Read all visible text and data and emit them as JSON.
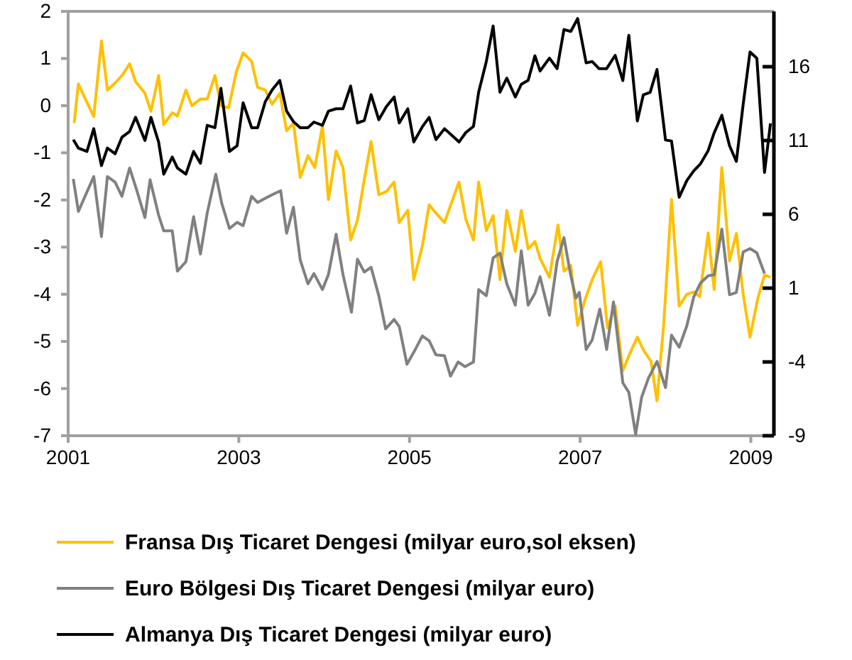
{
  "chart_data": {
    "type": "line",
    "xlim": [
      2001,
      2009.27
    ],
    "xticks": [
      2001,
      2003,
      2005,
      2007,
      2009
    ],
    "ylim": [
      -7,
      2
    ],
    "yticks": [
      -7,
      -6,
      -5,
      -4,
      -3,
      -2,
      -1,
      0,
      1,
      2
    ],
    "y2lim": [
      -9,
      19.75
    ],
    "y2ticks": [
      -9,
      -4,
      1,
      6,
      11,
      16
    ],
    "legend": "bottom",
    "grid": false,
    "series": [
      {
        "name": "Fransa Dış Ticaret Dengesi (milyar euro,sol eksen)",
        "color": "#ffc000",
        "x": [
          2001.07,
          2001.12,
          2001.21,
          2001.3,
          2001.39,
          2001.46,
          2001.55,
          2001.64,
          2001.72,
          2001.79,
          2001.9,
          2001.97,
          2002.06,
          2002.12,
          2002.22,
          2002.28,
          2002.38,
          2002.45,
          2002.55,
          2002.63,
          2002.72,
          2002.79,
          2002.88,
          2002.97,
          2003.05,
          2003.15,
          2003.22,
          2003.31,
          2003.39,
          2003.48,
          2003.56,
          2003.64,
          2003.72,
          2003.81,
          2003.89,
          2003.98,
          2004.05,
          2004.14,
          2004.22,
          2004.31,
          2004.39,
          2004.47,
          2004.55,
          2004.64,
          2004.73,
          2004.82,
          2004.88,
          2004.98,
          2005.05,
          2005.15,
          2005.23,
          2005.31,
          2005.41,
          2005.49,
          2005.58,
          2005.66,
          2005.75,
          2005.81,
          2005.9,
          2005.98,
          2006.06,
          2006.14,
          2006.24,
          2006.31,
          2006.39,
          2006.47,
          2006.53,
          2006.64,
          2006.74,
          2006.81,
          2006.89,
          2006.97,
          2007.06,
          2007.14,
          2007.24,
          2007.32,
          2007.41,
          2007.5,
          2007.58,
          2007.67,
          2007.75,
          2007.83,
          2007.9,
          2007.98,
          2008.07,
          2008.16,
          2008.25,
          2008.33,
          2008.4,
          2008.5,
          2008.57,
          2008.66,
          2008.75,
          2008.83,
          2008.91,
          2008.99,
          2009.08,
          2009.16,
          2009.23
        ],
        "values": [
          -0.37,
          0.46,
          0.11,
          -0.23,
          1.37,
          0.33,
          0.48,
          0.66,
          0.89,
          0.51,
          0.26,
          -0.12,
          0.64,
          -0.4,
          -0.15,
          -0.22,
          0.33,
          0,
          0.14,
          0.14,
          0.64,
          0,
          -0.05,
          0.71,
          1.12,
          0.94,
          0.39,
          0.33,
          0.03,
          0.26,
          -0.53,
          -0.37,
          -1.52,
          -1.06,
          -1.31,
          -0.43,
          -1.99,
          -0.96,
          -1.31,
          -2.85,
          -2.43,
          -1.57,
          -0.76,
          -1.89,
          -1.82,
          -1.62,
          -2.48,
          -2.22,
          -3.69,
          -2.98,
          -2.1,
          -2.28,
          -2.48,
          -2.07,
          -1.62,
          -2.41,
          -2.85,
          -1.62,
          -2.65,
          -2.33,
          -3.69,
          -2.22,
          -3.09,
          -2.22,
          -3.04,
          -2.88,
          -3.24,
          -3.64,
          -2.53,
          -3.51,
          -3.39,
          -4.66,
          -4.1,
          -3.69,
          -3.31,
          -4.71,
          -4.25,
          -5.62,
          -5.26,
          -4.91,
          -5.21,
          -5.42,
          -6.26,
          -4.61,
          -1.99,
          -4.25,
          -4,
          -3.95,
          -4.05,
          -2.7,
          -3.9,
          -1.31,
          -3.29,
          -2.71,
          -4,
          -4.91,
          -4.1,
          -3.59,
          -3.64
        ]
      },
      {
        "name": "Euro Bölgesi Dış Ticaret Dengesi (milyar euro)",
        "color": "#808080",
        "axis": "y2",
        "x": [
          2001.06,
          2001.12,
          2001.21,
          2001.3,
          2001.39,
          2001.46,
          2001.55,
          2001.63,
          2001.72,
          2001.8,
          2001.9,
          2001.96,
          2002.06,
          2002.12,
          2002.22,
          2002.28,
          2002.38,
          2002.47,
          2002.55,
          2002.63,
          2002.73,
          2002.8,
          2002.89,
          2002.98,
          2003.05,
          2003.15,
          2003.22,
          2003.32,
          2003.41,
          2003.49,
          2003.56,
          2003.64,
          2003.72,
          2003.81,
          2003.88,
          2003.98,
          2004.05,
          2004.14,
          2004.22,
          2004.32,
          2004.39,
          2004.47,
          2004.55,
          2004.64,
          2004.72,
          2004.82,
          2004.88,
          2004.97,
          2005.07,
          2005.15,
          2005.23,
          2005.31,
          2005.41,
          2005.48,
          2005.57,
          2005.65,
          2005.75,
          2005.81,
          2005.9,
          2005.98,
          2006.06,
          2006.14,
          2006.24,
          2006.31,
          2006.39,
          2006.47,
          2006.53,
          2006.64,
          2006.73,
          2006.81,
          2006.89,
          2006.95,
          2006.99,
          2007.07,
          2007.14,
          2007.23,
          2007.31,
          2007.39,
          2007.5,
          2007.57,
          2007.65,
          2007.72,
          2007.8,
          2007.9,
          2008,
          2008.07,
          2008.16,
          2008.25,
          2008.33,
          2008.41,
          2008.5,
          2008.57,
          2008.66,
          2008.75,
          2008.83,
          2008.91,
          2008.99,
          2009.07,
          2009.16
        ],
        "values": [
          8.4,
          6.19,
          7.38,
          8.56,
          4.49,
          8.56,
          8.18,
          7.22,
          9.14,
          7.7,
          5.78,
          8.34,
          5.94,
          4.88,
          4.88,
          2.15,
          2.79,
          5.84,
          3.31,
          6.1,
          8.72,
          6.74,
          5.04,
          5.46,
          5.23,
          7.22,
          6.8,
          7.12,
          7.38,
          7.6,
          4.72,
          6.48,
          2.89,
          1.29,
          1.99,
          0.9,
          1.93,
          4.65,
          1.93,
          -0.63,
          2.96,
          2.09,
          2.41,
          0.49,
          -1.76,
          -1.12,
          -1.6,
          -4.16,
          -3.13,
          -2.24,
          -2.56,
          -3.52,
          -3.58,
          -4.96,
          -4,
          -4.32,
          -4,
          0.9,
          0.49,
          3.05,
          3.37,
          1.29,
          -0.15,
          3.53,
          -0.15,
          0.65,
          1.77,
          -0.84,
          2.81,
          4.42,
          1.84,
          0.32,
          0.71,
          -3.16,
          -2.52,
          -0.42,
          -3.16,
          0.06,
          -5.42,
          -6.06,
          -8.9,
          -6.39,
          -5.1,
          -3.97,
          -5.74,
          -2.19,
          -3,
          -1.55,
          0.39,
          1.35,
          1.84,
          1.9,
          5,
          0.55,
          0.71,
          3.45,
          3.68,
          3.39,
          2
        ]
      },
      {
        "name": "Almanya Dış Ticaret Dengesi (milyar euro)",
        "color": "#000000",
        "axis": "y2",
        "x": [
          2001.06,
          2001.12,
          2001.22,
          2001.3,
          2001.39,
          2001.46,
          2001.55,
          2001.63,
          2001.72,
          2001.79,
          2001.9,
          2001.97,
          2002.06,
          2002.12,
          2002.22,
          2002.28,
          2002.38,
          2002.47,
          2002.55,
          2002.63,
          2002.72,
          2002.79,
          2002.89,
          2002.98,
          2003.05,
          2003.15,
          2003.22,
          2003.31,
          2003.39,
          2003.48,
          2003.56,
          2003.64,
          2003.72,
          2003.81,
          2003.88,
          2003.98,
          2004.05,
          2004.14,
          2004.22,
          2004.31,
          2004.39,
          2004.47,
          2004.55,
          2004.64,
          2004.73,
          2004.82,
          2004.88,
          2004.98,
          2005.05,
          2005.15,
          2005.23,
          2005.31,
          2005.41,
          2005.49,
          2005.58,
          2005.66,
          2005.75,
          2005.81,
          2005.9,
          2005.98,
          2006.06,
          2006.14,
          2006.24,
          2006.31,
          2006.39,
          2006.47,
          2006.53,
          2006.64,
          2006.73,
          2006.81,
          2006.89,
          2006.97,
          2007.07,
          2007.14,
          2007.22,
          2007.31,
          2007.41,
          2007.5,
          2007.57,
          2007.67,
          2007.74,
          2007.82,
          2007.9,
          2008,
          2008.07,
          2008.16,
          2008.25,
          2008.33,
          2008.41,
          2008.5,
          2008.57,
          2008.66,
          2008.75,
          2008.83,
          2008.91,
          2008.99,
          2009.07,
          2009.16,
          2009.23
        ],
        "values": [
          11.06,
          10.49,
          10.26,
          11.8,
          9.3,
          10.49,
          10.1,
          11.22,
          11.61,
          12.57,
          11,
          12.57,
          10.9,
          8.72,
          9.88,
          9.14,
          8.72,
          10.26,
          9.46,
          12.03,
          11.87,
          14.53,
          10.26,
          10.65,
          13.56,
          11.87,
          11.87,
          13.63,
          14.43,
          15.07,
          12.99,
          12.28,
          11.87,
          11.87,
          12.25,
          12.03,
          12.99,
          13.15,
          13.15,
          14.69,
          12.19,
          12.35,
          14.11,
          12.41,
          13.31,
          13.95,
          12.19,
          13.15,
          10.9,
          11.93,
          12.57,
          11.06,
          11.8,
          11.38,
          10.9,
          11.54,
          11.96,
          14.27,
          16.35,
          18.76,
          14.27,
          15.23,
          13.95,
          14.81,
          15.07,
          16.74,
          15.71,
          16.58,
          15.87,
          18.52,
          18.39,
          19.26,
          16.26,
          16.35,
          15.87,
          15.87,
          16.77,
          15.06,
          18.13,
          12.32,
          14.1,
          14.26,
          15.81,
          11.03,
          10.97,
          7.16,
          8.29,
          8.94,
          9.42,
          10.32,
          11.52,
          12.71,
          10.65,
          9.58,
          13.45,
          17,
          16.58,
          8.84,
          12.16
        ]
      }
    ]
  }
}
